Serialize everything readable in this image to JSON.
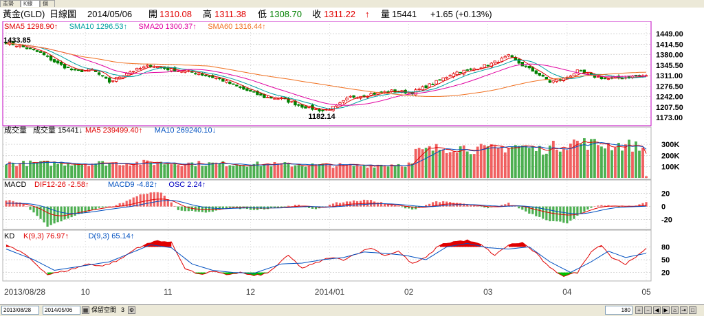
{
  "tabs": [
    "走勢圖",
    "K線圖",
    "個股"
  ],
  "header": {
    "symbol": "黃金(GLD)",
    "period": "日線圖",
    "date": "2014/05/06",
    "open_label": "開",
    "open": "1310.08",
    "high_label": "高",
    "high": "1311.38",
    "low_label": "低",
    "low": "1308.70",
    "close_label": "收",
    "close": "1311.22",
    "close_arrow": "↑",
    "volume_label": "量",
    "volume": "15441",
    "change": "+1.65 (+0.13%)"
  },
  "colors": {
    "up": "#e00000",
    "down": "#008000",
    "sma5": "#e00000",
    "sma10": "#00a0a0",
    "sma20": "#e000a0",
    "sma60": "#f07020",
    "border": "#c000c0",
    "grid": "#b0b0b0"
  },
  "chart_data": [
    {
      "type": "candlestick",
      "legend": [
        {
          "name": "SMA5",
          "value": "1298.90",
          "arrow": "↑",
          "color": "#e00000"
        },
        {
          "name": "SMA10",
          "value": "1296.53",
          "arrow": "↑",
          "color": "#00a0a0"
        },
        {
          "name": "SMA20",
          "value": "1300.37",
          "arrow": "↑",
          "color": "#e000a0"
        },
        {
          "name": "SMA60",
          "value": "1316.44",
          "arrow": "↑",
          "color": "#f07020"
        }
      ],
      "y_ticks": [
        "1449.00",
        "1414.50",
        "1380.00",
        "1345.50",
        "1311.00",
        "1276.50",
        "1242.00",
        "1207.50",
        "1173.00"
      ],
      "ylim": [
        1173,
        1449
      ],
      "annotations": [
        {
          "text": "1433.85",
          "type": "high"
        },
        {
          "text": "1182.14",
          "type": "low"
        }
      ],
      "close_anchors": [
        [
          0,
          1420
        ],
        [
          5,
          1405
        ],
        [
          10,
          1385
        ],
        [
          15,
          1350
        ],
        [
          20,
          1325
        ],
        [
          25,
          1330
        ],
        [
          30,
          1290
        ],
        [
          35,
          1320
        ],
        [
          42,
          1345
        ],
        [
          48,
          1330
        ],
        [
          55,
          1320
        ],
        [
          62,
          1300
        ],
        [
          68,
          1270
        ],
        [
          75,
          1240
        ],
        [
          80,
          1235
        ],
        [
          86,
          1210
        ],
        [
          92,
          1195
        ],
        [
          96,
          1210
        ],
        [
          100,
          1240
        ],
        [
          106,
          1250
        ],
        [
          112,
          1260
        ],
        [
          118,
          1255
        ],
        [
          125,
          1290
        ],
        [
          130,
          1320
        ],
        [
          135,
          1330
        ],
        [
          141,
          1350
        ],
        [
          146,
          1375
        ],
        [
          150,
          1345
        ],
        [
          154,
          1320
        ],
        [
          158,
          1290
        ],
        [
          162,
          1300
        ],
        [
          166,
          1325
        ],
        [
          170,
          1310
        ],
        [
          175,
          1300
        ],
        [
          180,
          1305
        ],
        [
          184,
          1310
        ],
        [
          186,
          1311
        ]
      ]
    },
    {
      "type": "bar",
      "title": "成交量",
      "legend": [
        {
          "name": "成交量",
          "value": "15441",
          "arrow": "↓",
          "color": "#000000"
        },
        {
          "name": "MA5",
          "value": "239499.40",
          "arrow": "↑",
          "color": "#e00000"
        },
        {
          "name": "MA10",
          "value": "269240.10",
          "arrow": "↓",
          "color": "#0050c0"
        }
      ],
      "y_ticks": [
        "300K",
        "200K",
        "100K"
      ],
      "ylim": [
        0,
        380000
      ],
      "volume_anchors": [
        [
          0,
          130000
        ],
        [
          40,
          135000
        ],
        [
          80,
          120000
        ],
        [
          100,
          110000
        ],
        [
          118,
          125000
        ],
        [
          119,
          230000
        ],
        [
          125,
          260000
        ],
        [
          130,
          280000
        ],
        [
          140,
          250000
        ],
        [
          148,
          290000
        ],
        [
          155,
          250000
        ],
        [
          165,
          320000
        ],
        [
          172,
          300000
        ],
        [
          182,
          290000
        ],
        [
          185,
          260000
        ],
        [
          186,
          15441
        ]
      ]
    },
    {
      "type": "bar",
      "title": "MACD",
      "legend": [
        {
          "name": "DIF12-26",
          "value": "-2.58",
          "arrow": "↑",
          "color": "#e00000"
        },
        {
          "name": "MACD9",
          "value": "-4.82",
          "arrow": "↑",
          "color": "#0050c0"
        },
        {
          "name": "OSC",
          "value": "2.24",
          "arrow": "↑",
          "color": "#0000c0"
        }
      ],
      "y_ticks": [
        "20",
        "0",
        "-20"
      ],
      "ylim": [
        -32,
        28
      ],
      "osc_anchors": [
        [
          0,
          10
        ],
        [
          5,
          5
        ],
        [
          12,
          -30
        ],
        [
          18,
          -18
        ],
        [
          25,
          -5
        ],
        [
          32,
          2
        ],
        [
          40,
          20
        ],
        [
          45,
          22
        ],
        [
          50,
          -5
        ],
        [
          58,
          -10
        ],
        [
          65,
          -2
        ],
        [
          72,
          -5
        ],
        [
          78,
          -3
        ],
        [
          85,
          3
        ],
        [
          90,
          -5
        ],
        [
          95,
          5
        ],
        [
          100,
          8
        ],
        [
          105,
          10
        ],
        [
          110,
          5
        ],
        [
          118,
          -5
        ],
        [
          125,
          8
        ],
        [
          132,
          5
        ],
        [
          140,
          -3
        ],
        [
          146,
          5
        ],
        [
          152,
          -10
        ],
        [
          158,
          -22
        ],
        [
          163,
          -25
        ],
        [
          168,
          -8
        ],
        [
          172,
          2
        ],
        [
          178,
          0
        ],
        [
          183,
          2
        ],
        [
          186,
          6
        ]
      ]
    },
    {
      "type": "line",
      "title": "KD",
      "legend": [
        {
          "name": "K(9,3)",
          "value": "76.97",
          "arrow": "↑",
          "color": "#e00000"
        },
        {
          "name": "D(9,3)",
          "value": "65.14",
          "arrow": "↑",
          "color": "#0050c0"
        }
      ],
      "y_ticks": [
        "80",
        "50",
        "20"
      ],
      "ylim": [
        0,
        100
      ],
      "k_anchors": [
        [
          0,
          85
        ],
        [
          6,
          60
        ],
        [
          12,
          15
        ],
        [
          18,
          25
        ],
        [
          24,
          40
        ],
        [
          28,
          35
        ],
        [
          33,
          50
        ],
        [
          38,
          78
        ],
        [
          44,
          95
        ],
        [
          48,
          90
        ],
        [
          52,
          30
        ],
        [
          56,
          15
        ],
        [
          60,
          22
        ],
        [
          64,
          15
        ],
        [
          68,
          20
        ],
        [
          72,
          12
        ],
        [
          76,
          18
        ],
        [
          82,
          60
        ],
        [
          86,
          30
        ],
        [
          90,
          42
        ],
        [
          94,
          55
        ],
        [
          98,
          50
        ],
        [
          102,
          65
        ],
        [
          106,
          78
        ],
        [
          110,
          60
        ],
        [
          114,
          70
        ],
        [
          118,
          40
        ],
        [
          122,
          55
        ],
        [
          126,
          85
        ],
        [
          130,
          92
        ],
        [
          134,
          95
        ],
        [
          138,
          85
        ],
        [
          142,
          60
        ],
        [
          146,
          85
        ],
        [
          150,
          90
        ],
        [
          154,
          65
        ],
        [
          158,
          30
        ],
        [
          162,
          12
        ],
        [
          166,
          20
        ],
        [
          170,
          70
        ],
        [
          173,
          85
        ],
        [
          176,
          55
        ],
        [
          180,
          40
        ],
        [
          183,
          55
        ],
        [
          186,
          77
        ]
      ],
      "d_anchors": [
        [
          0,
          75
        ],
        [
          8,
          50
        ],
        [
          14,
          25
        ],
        [
          22,
          35
        ],
        [
          30,
          45
        ],
        [
          36,
          65
        ],
        [
          42,
          85
        ],
        [
          48,
          78
        ],
        [
          54,
          40
        ],
        [
          60,
          25
        ],
        [
          66,
          20
        ],
        [
          72,
          18
        ],
        [
          80,
          40
        ],
        [
          86,
          42
        ],
        [
          92,
          50
        ],
        [
          98,
          55
        ],
        [
          104,
          68
        ],
        [
          110,
          65
        ],
        [
          116,
          60
        ],
        [
          122,
          50
        ],
        [
          128,
          80
        ],
        [
          134,
          88
        ],
        [
          140,
          78
        ],
        [
          146,
          75
        ],
        [
          152,
          80
        ],
        [
          158,
          45
        ],
        [
          164,
          20
        ],
        [
          170,
          45
        ],
        [
          175,
          70
        ],
        [
          180,
          55
        ],
        [
          186,
          65
        ]
      ]
    }
  ],
  "x_axis": {
    "labels": [
      "2013/08/28",
      "10",
      "11",
      "12",
      "2014/01",
      "02",
      "03",
      "04",
      "05"
    ],
    "positions": [
      0,
      23,
      47,
      71,
      94,
      117,
      140,
      163,
      186
    ]
  },
  "toolbar": {
    "date_from": "2013/08/28",
    "date_to": "2014/05/06",
    "keep_label": "保留空間",
    "keep_value": "3",
    "count": "180"
  }
}
